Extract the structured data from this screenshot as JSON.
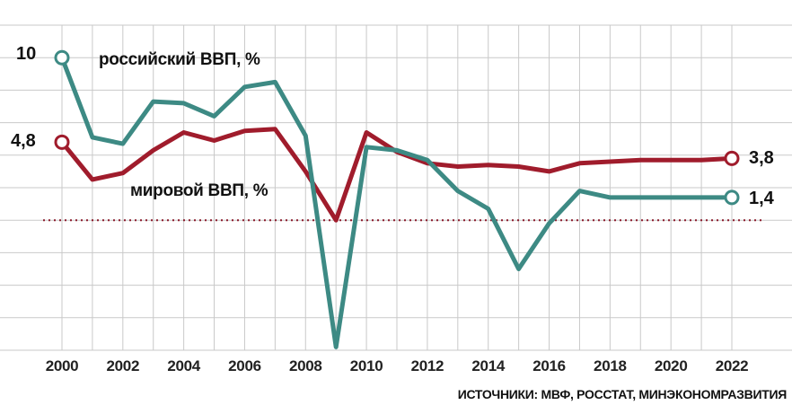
{
  "chart_data": {
    "type": "line",
    "title": "",
    "xlabel": "",
    "ylabel": "",
    "x": [
      2000,
      2001,
      2002,
      2003,
      2004,
      2005,
      2006,
      2007,
      2008,
      2009,
      2010,
      2011,
      2012,
      2013,
      2014,
      2015,
      2016,
      2017,
      2018,
      2019,
      2020,
      2021,
      2022
    ],
    "x_tick_labels": [
      "2000",
      "2002",
      "2004",
      "2006",
      "2008",
      "2010",
      "2012",
      "2014",
      "2016",
      "2018",
      "2020",
      "2022"
    ],
    "ylim": [
      -8,
      12
    ],
    "grid": true,
    "reference_line": {
      "y": 0,
      "style": "dotted",
      "color": "#8b1a2b"
    },
    "series": [
      {
        "name": "российский ВВП, %",
        "color": "#3d8a84",
        "values": [
          10,
          5.1,
          4.7,
          7.3,
          7.2,
          6.4,
          8.2,
          8.5,
          5.2,
          -7.8,
          4.5,
          4.3,
          3.7,
          1.8,
          0.7,
          -3.0,
          -0.2,
          1.8,
          1.4,
          1.4,
          1.4,
          1.4,
          1.4
        ],
        "start_label": "10",
        "end_label": "1,4"
      },
      {
        "name": "мировой ВВП, %",
        "color": "#a01c2c",
        "values": [
          4.8,
          2.5,
          2.9,
          4.3,
          5.4,
          4.9,
          5.5,
          5.6,
          3.0,
          0.0,
          5.4,
          4.2,
          3.5,
          3.3,
          3.4,
          3.3,
          3.0,
          3.5,
          3.6,
          3.7,
          3.7,
          3.7,
          3.8
        ],
        "start_label": "4,8",
        "end_label": "3,8"
      }
    ]
  },
  "labels": {
    "russia": "российский ВВП, %",
    "world": "мировой ВВП, %",
    "source": "ИСТОЧНИКИ: МВФ, РОССТАТ, МИНЭКОНОМРАЗВИТИЯ"
  }
}
